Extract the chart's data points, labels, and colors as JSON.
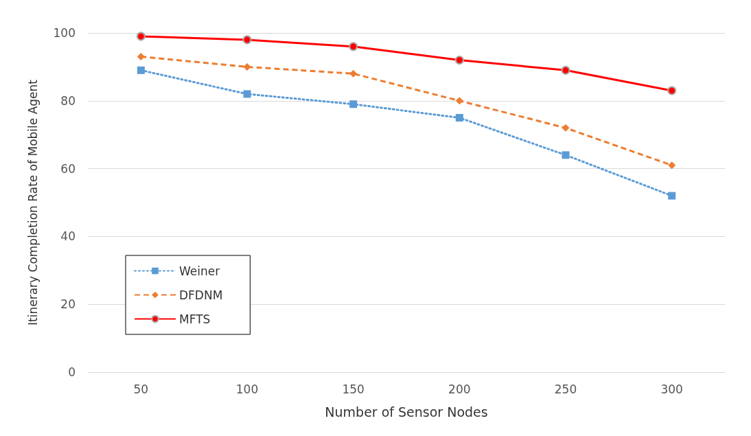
{
  "chart_data": {
    "type": "line",
    "xlabel": "Number of Sensor Nodes",
    "ylabel": "Itinerary Completion Rate of Mobile Agent",
    "categories": [
      "50",
      "100",
      "150",
      "200",
      "250",
      "300"
    ],
    "ylim": [
      0,
      100
    ],
    "yticks": [
      0,
      20,
      40,
      60,
      80,
      100
    ],
    "grid": "y",
    "legend": "bottom left",
    "series": [
      {
        "name": "Weiner",
        "color": "#5b9bd5",
        "marker": "square",
        "line_style": "dotted",
        "values": [
          89,
          82,
          79,
          75,
          64,
          52
        ]
      },
      {
        "name": "DFDNM",
        "color": "#ed7d31",
        "marker": "diamond",
        "line_style": "dashed",
        "values": [
          93,
          90,
          88,
          80,
          72,
          61
        ]
      },
      {
        "name": "MFTS",
        "color": "#ff0000",
        "marker": "circle",
        "line_style": "solid",
        "values": [
          99,
          98,
          96,
          92,
          89,
          83
        ]
      }
    ]
  }
}
